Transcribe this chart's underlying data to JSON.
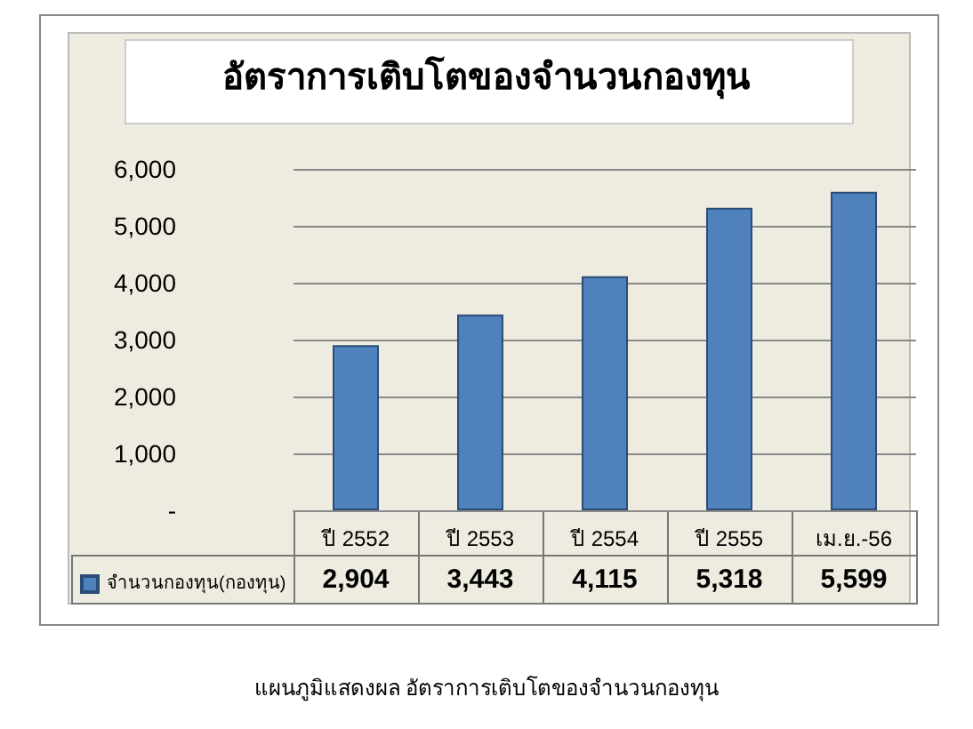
{
  "chart_data": {
    "type": "bar",
    "title": "อัตราการเติบโตของจำนวนกองทุน",
    "categories": [
      "ปี 2552",
      "ปี 2553",
      "ปี 2554",
      "ปี 2555",
      "เม.ย.-56"
    ],
    "series": [
      {
        "name": "จำนวนกองทุน(กองทุน)",
        "color": "#4f81bd",
        "values": [
          2904,
          3443,
          4115,
          5318,
          5599
        ],
        "value_labels": [
          "2,904",
          "3,443",
          "4,115",
          "5,318",
          "5,599"
        ]
      }
    ],
    "ylim": [
      0,
      6000
    ],
    "yticks": [
      {
        "value": 0,
        "label": "-"
      },
      {
        "value": 1000,
        "label": "1,000"
      },
      {
        "value": 2000,
        "label": "2,000"
      },
      {
        "value": 3000,
        "label": "3,000"
      },
      {
        "value": 4000,
        "label": "4,000"
      },
      {
        "value": 5000,
        "label": "5,000"
      },
      {
        "value": 6000,
        "label": "6,000"
      }
    ],
    "grid": "y",
    "legend": "bottom left",
    "annotations": [
      "แผนภูมิแสดงผล อัตราการเติบโตของจำนวนกองทุน"
    ]
  }
}
